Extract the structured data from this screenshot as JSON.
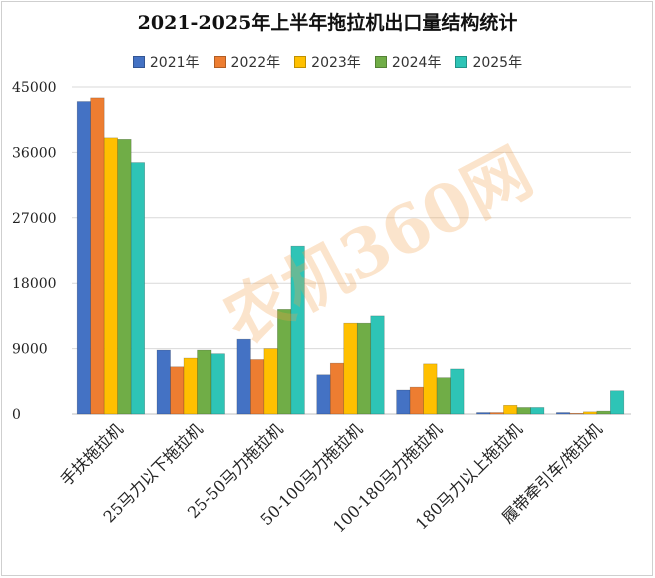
{
  "chart_data": {
    "type": "bar",
    "title": "2021-2025年上半年拖拉机出口量结构统计",
    "categories": [
      "手扶拖拉机",
      "25马力以下拖拉机",
      "25-50马力拖拉机",
      "50-100马力拖拉机",
      "100-180马力拖拉机",
      "180马力以上拖拉机",
      "履带牵引车/拖拉机"
    ],
    "series": [
      {
        "name": "2021年",
        "color": "#4472C4",
        "values": [
          43000,
          8800,
          10300,
          5400,
          3300,
          200,
          200
        ]
      },
      {
        "name": "2022年",
        "color": "#ED7D31",
        "values": [
          43500,
          6500,
          7500,
          7000,
          3700,
          200,
          100
        ]
      },
      {
        "name": "2023年",
        "color": "#FFC000",
        "values": [
          38000,
          7700,
          9000,
          12500,
          6900,
          1200,
          300
        ]
      },
      {
        "name": "2024年",
        "color": "#70AD47",
        "values": [
          37800,
          8800,
          14400,
          12500,
          5000,
          900,
          400
        ]
      },
      {
        "name": "2025年",
        "color": "#2EC4B6",
        "values": [
          34600,
          8300,
          23100,
          13500,
          6200,
          900,
          3200
        ]
      }
    ],
    "yticks": [
      0,
      9000,
      18000,
      27000,
      36000,
      45000
    ],
    "ylim": [
      0,
      45000
    ],
    "grid": true,
    "legend_position": "top"
  },
  "watermark": {
    "text": "农机360网"
  }
}
